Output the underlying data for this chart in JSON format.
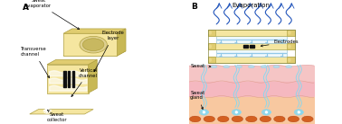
{
  "fig_width": 3.78,
  "fig_height": 1.38,
  "dpi": 100,
  "bg_color": "#ffffff",
  "panel_a_label": "A",
  "panel_b_label": "B",
  "panel_b_title": "Evaporation",
  "labels_a": {
    "sweat_evaporator": "Sweat\nevaporator",
    "transverse_channel": "Transverse\nchannel",
    "electrode_layer": "Electrode\nlayer",
    "vertical_channel": "Vertical\nchannel",
    "sweat_collector": "Sweat\ncollector"
  },
  "labels_b": {
    "electrodes": "Electrodes",
    "sweat": "Sweat",
    "sweat_gland": "Sweat\ngland"
  },
  "colors": {
    "paper_yellow": "#f5e6a0",
    "paper_yellow_dark": "#e0cc70",
    "paper_yellow_side": "#c8b855",
    "skin_top": "#fadadd",
    "skin_mid": "#f5b8c0",
    "skin_deep": "#f0a0a8",
    "skin_bottom": "#f8c8a8",
    "sweat_blue": "#b0e0f0",
    "sweat_gland_blue": "#88d8f0",
    "electrode_black": "#111111",
    "orange_cells": "#d46020",
    "white": "#ffffff",
    "text_color": "#111111",
    "evap_arrow": "#2255bb",
    "fluid_blue": "#90c8e8"
  }
}
